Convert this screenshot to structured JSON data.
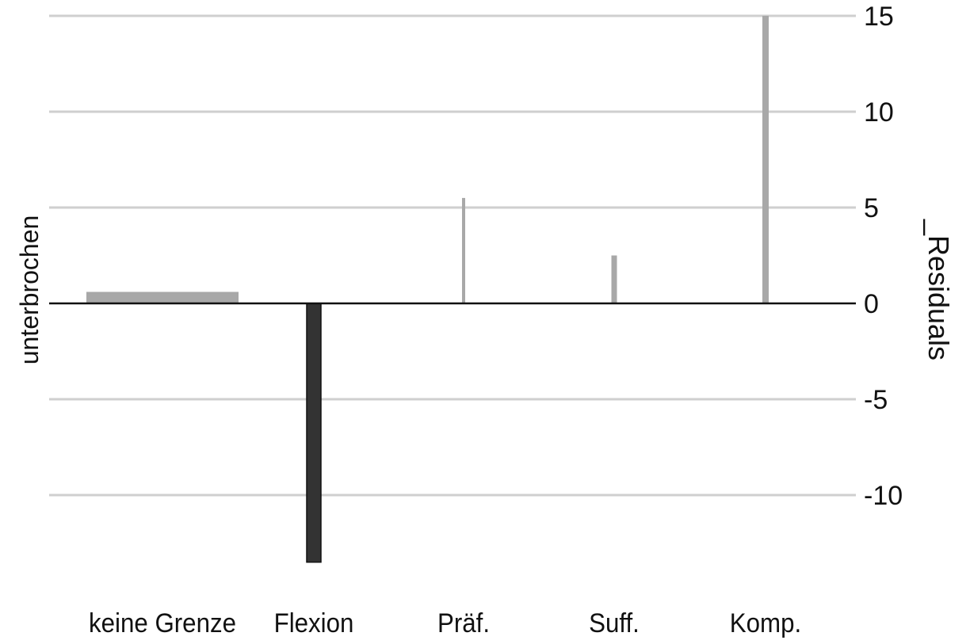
{
  "chart_data": {
    "type": "bar",
    "categories": [
      "keine Grenze",
      "Flexion",
      "Präf.",
      "Suff.",
      "Komp."
    ],
    "values": [
      0.6,
      -13.5,
      5.5,
      2.5,
      15
    ],
    "left_label": "unterbrochen",
    "ylabel": "_Residuals",
    "ylim": [
      -13.5,
      15.5
    ],
    "yticks": [
      15,
      10,
      5,
      0,
      -5,
      -10
    ],
    "y_axis_side": "right",
    "grid": true,
    "colors": {
      "positive": "#a8a8a8",
      "negative": "#333333",
      "gridline": "#cfcfcf",
      "baseline": "#111111"
    }
  }
}
